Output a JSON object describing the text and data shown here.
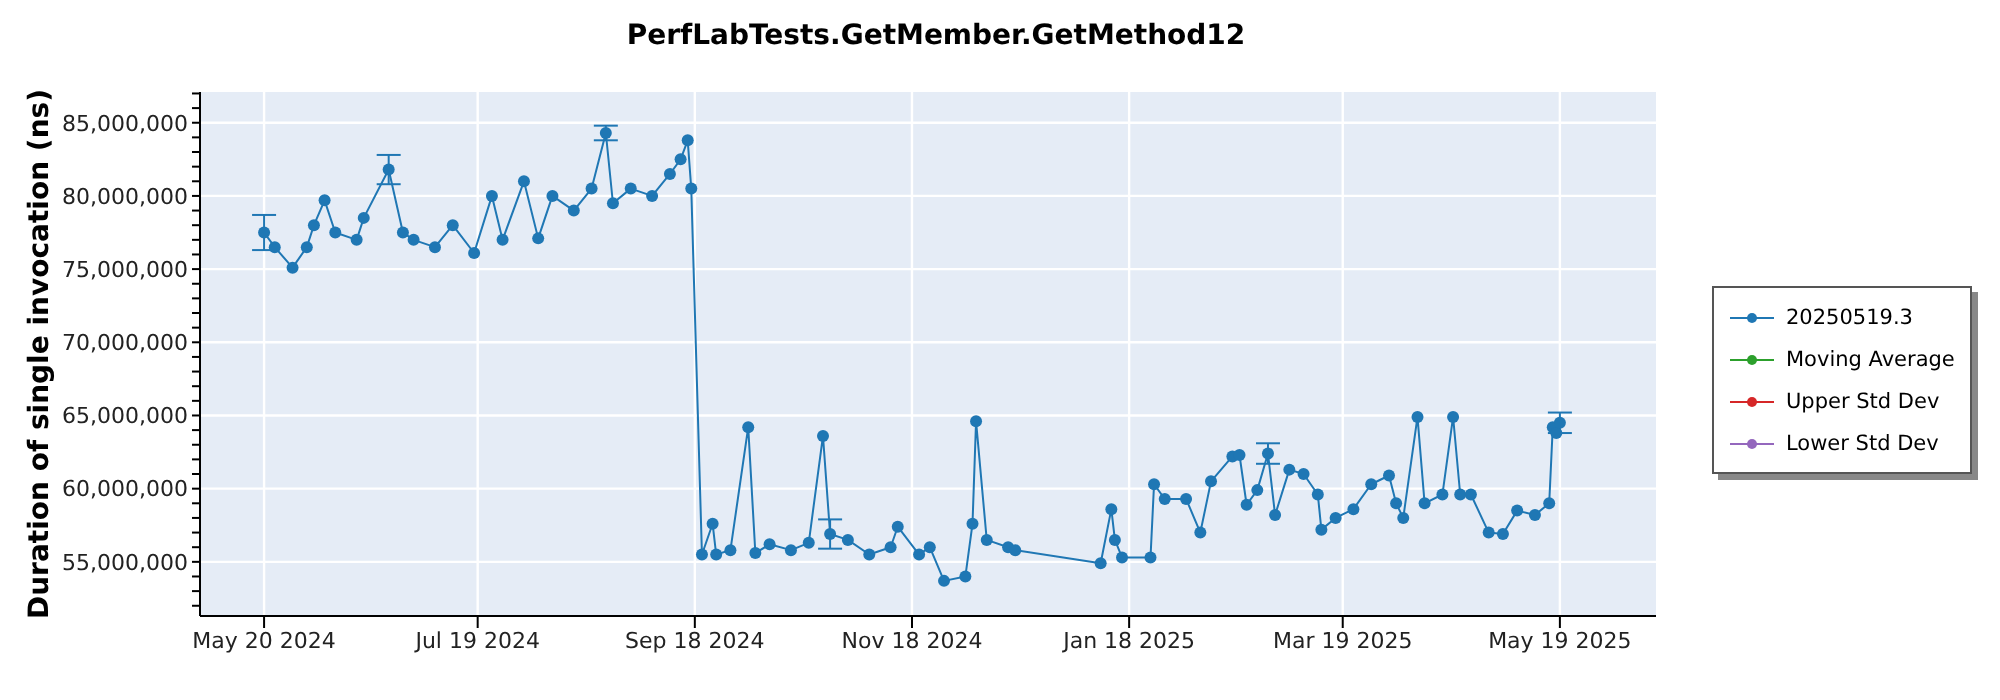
{
  "chart_data": {
    "type": "line",
    "title": "PerfLabTests.GetMember.GetMethod12",
    "ylabel": "Duration of single invocation (ns)",
    "x": [
      "2024-05-20",
      "2024-05-23",
      "2024-05-28",
      "2024-06-01",
      "2024-06-03",
      "2024-06-06",
      "2024-06-09",
      "2024-06-15",
      "2024-06-17",
      "2024-06-24",
      "2024-06-28",
      "2024-07-01",
      "2024-07-07",
      "2024-07-12",
      "2024-07-18",
      "2024-07-23",
      "2024-07-26",
      "2024-08-01",
      "2024-08-05",
      "2024-08-09",
      "2024-08-15",
      "2024-08-20",
      "2024-08-24",
      "2024-08-26",
      "2024-08-31",
      "2024-09-06",
      "2024-09-11",
      "2024-09-14",
      "2024-09-16",
      "2024-09-17",
      "2024-09-20",
      "2024-09-23",
      "2024-09-24",
      "2024-09-28",
      "2024-10-03",
      "2024-10-05",
      "2024-10-09",
      "2024-10-15",
      "2024-10-20",
      "2024-10-24",
      "2024-10-26",
      "2024-10-31",
      "2024-11-06",
      "2024-11-12",
      "2024-11-14",
      "2024-11-20",
      "2024-11-23",
      "2024-11-27",
      "2024-12-03",
      "2024-12-05",
      "2024-12-06",
      "2024-12-09",
      "2024-12-15",
      "2024-12-17",
      "2025-01-10",
      "2025-01-13",
      "2025-01-14",
      "2025-01-16",
      "2025-01-24",
      "2025-01-25",
      "2025-01-28",
      "2025-02-03",
      "2025-02-07",
      "2025-02-10",
      "2025-02-16",
      "2025-02-18",
      "2025-02-20",
      "2025-02-23",
      "2025-02-26",
      "2025-02-28",
      "2025-03-04",
      "2025-03-08",
      "2025-03-12",
      "2025-03-13",
      "2025-03-17",
      "2025-03-22",
      "2025-03-27",
      "2025-04-01",
      "2025-04-03",
      "2025-04-05",
      "2025-04-09",
      "2025-04-11",
      "2025-04-16",
      "2025-04-19",
      "2025-04-21",
      "2025-04-24",
      "2025-04-29",
      "2025-05-03",
      "2025-05-07",
      "2025-05-12",
      "2025-05-16",
      "2025-05-17",
      "2025-05-18",
      "2025-05-19"
    ],
    "series": [
      {
        "name": "20250519.3",
        "color": "#1f77b4",
        "values": [
          77500000,
          76500000,
          75100000,
          76500000,
          78000000,
          79700000,
          77500000,
          77000000,
          78500000,
          81800000,
          77500000,
          77000000,
          76500000,
          78000000,
          76100000,
          80000000,
          77000000,
          81000000,
          77100000,
          80000000,
          79000000,
          80500000,
          84300000,
          79500000,
          80500000,
          80000000,
          81500000,
          82500000,
          83800000,
          80500000,
          55500000,
          57600000,
          55500000,
          55800000,
          64200000,
          55600000,
          56200000,
          55800000,
          56300000,
          63600000,
          56900000,
          56500000,
          55500000,
          56000000,
          57400000,
          55500000,
          56000000,
          53700000,
          54000000,
          57600000,
          64600000,
          56500000,
          56000000,
          55800000,
          54900000,
          58600000,
          56500000,
          55300000,
          55300000,
          60300000,
          59300000,
          59300000,
          57000000,
          60500000,
          62200000,
          62300000,
          58900000,
          59900000,
          62400000,
          58200000,
          61300000,
          61000000,
          59600000,
          57200000,
          58000000,
          58600000,
          60300000,
          60900000,
          59000000,
          58000000,
          64900000,
          59000000,
          59600000,
          64900000,
          59600000,
          59600000,
          57000000,
          56900000,
          58500000,
          58200000,
          59000000,
          64200000,
          63800000,
          64500000
        ],
        "errors": [
          1200000,
          null,
          null,
          null,
          null,
          null,
          null,
          null,
          null,
          1000000,
          null,
          null,
          null,
          null,
          null,
          null,
          null,
          null,
          null,
          null,
          null,
          null,
          500000,
          null,
          null,
          null,
          null,
          null,
          null,
          null,
          null,
          null,
          null,
          null,
          null,
          null,
          null,
          null,
          null,
          null,
          1000000,
          null,
          null,
          null,
          null,
          null,
          null,
          null,
          null,
          null,
          null,
          null,
          null,
          null,
          null,
          null,
          null,
          null,
          null,
          null,
          null,
          null,
          null,
          null,
          null,
          null,
          null,
          null,
          700000,
          null,
          null,
          null,
          null,
          null,
          null,
          null,
          null,
          null,
          null,
          null,
          null,
          null,
          null,
          null,
          null,
          null,
          null,
          null,
          null,
          null,
          null,
          null,
          null,
          700000
        ]
      },
      {
        "name": "Moving Average",
        "color": "#2ca02c",
        "values": [
          null,
          null,
          null,
          null,
          null,
          null,
          null,
          null,
          null,
          null,
          null,
          null,
          null,
          null,
          null,
          null,
          null,
          null,
          null,
          null,
          null,
          null,
          null,
          null,
          null,
          null,
          null,
          null,
          null,
          null,
          null,
          null,
          null,
          null,
          null,
          null,
          null,
          null,
          null,
          null,
          null,
          null,
          null,
          null,
          null,
          null,
          null,
          null,
          null,
          null,
          null,
          null,
          null,
          null,
          null,
          null,
          null,
          null,
          null,
          null,
          null,
          null,
          null,
          null,
          null,
          null,
          null,
          null,
          null,
          null,
          null,
          null,
          null,
          null,
          null,
          null,
          null,
          null,
          null,
          null,
          null,
          null,
          null,
          null,
          null,
          null,
          null,
          null,
          null,
          null,
          null,
          null,
          null,
          null
        ]
      },
      {
        "name": "Upper Std Dev",
        "color": "#d62728",
        "values": [
          null,
          null,
          null,
          null,
          null,
          null,
          null,
          null,
          null,
          null,
          null,
          null,
          null,
          null,
          null,
          null,
          null,
          null,
          null,
          null,
          null,
          null,
          null,
          null,
          null,
          null,
          null,
          null,
          null,
          null,
          null,
          null,
          null,
          null,
          null,
          null,
          null,
          null,
          null,
          null,
          null,
          null,
          null,
          null,
          null,
          null,
          null,
          null,
          null,
          null,
          null,
          null,
          null,
          null,
          null,
          null,
          null,
          null,
          null,
          null,
          null,
          null,
          null,
          null,
          null,
          null,
          null,
          null,
          null,
          null,
          null,
          null,
          null,
          null,
          null,
          null,
          null,
          null,
          null,
          null,
          null,
          null,
          null,
          null,
          null,
          null,
          null,
          null,
          null,
          null,
          null,
          null,
          null,
          null
        ]
      },
      {
        "name": "Lower Std Dev",
        "color": "#9467bd",
        "values": [
          null,
          null,
          null,
          null,
          null,
          null,
          null,
          null,
          null,
          null,
          null,
          null,
          null,
          null,
          null,
          null,
          null,
          null,
          null,
          null,
          null,
          null,
          null,
          null,
          null,
          null,
          null,
          null,
          null,
          null,
          null,
          null,
          null,
          null,
          null,
          null,
          null,
          null,
          null,
          null,
          null,
          null,
          null,
          null,
          null,
          null,
          null,
          null,
          null,
          null,
          null,
          null,
          null,
          null,
          null,
          null,
          null,
          null,
          null,
          null,
          null,
          null,
          null,
          null,
          null,
          null,
          null,
          null,
          null,
          null,
          null,
          null,
          null,
          null,
          null,
          null,
          null,
          null,
          null,
          null,
          null,
          null,
          null,
          null,
          null,
          null,
          null,
          null,
          null,
          null,
          null,
          null,
          null,
          null
        ]
      }
    ],
    "xlim": [
      "2024-05-02",
      "2025-06-15"
    ],
    "xticks": [
      {
        "value": "2024-05-20",
        "label": "May 20 2024"
      },
      {
        "value": "2024-07-19",
        "label": "Jul 19 2024"
      },
      {
        "value": "2024-09-18",
        "label": "Sep 18 2024"
      },
      {
        "value": "2024-11-18",
        "label": "Nov 18 2024"
      },
      {
        "value": "2025-01-18",
        "label": "Jan 18 2025"
      },
      {
        "value": "2025-03-19",
        "label": "Mar 19 2025"
      },
      {
        "value": "2025-05-19",
        "label": "May 19 2025"
      }
    ],
    "ylim": [
      51300000,
      87100000
    ],
    "yticks": [
      {
        "value": 52000000,
        "label": null
      },
      {
        "value": 53000000,
        "label": null
      },
      {
        "value": 54000000,
        "label": null
      },
      {
        "value": 55000000,
        "label": "55,000,000"
      },
      {
        "value": 56000000,
        "label": null
      },
      {
        "value": 57000000,
        "label": null
      },
      {
        "value": 58000000,
        "label": null
      },
      {
        "value": 59000000,
        "label": null
      },
      {
        "value": 60000000,
        "label": "60,000,000"
      },
      {
        "value": 61000000,
        "label": null
      },
      {
        "value": 62000000,
        "label": null
      },
      {
        "value": 63000000,
        "label": null
      },
      {
        "value": 64000000,
        "label": null
      },
      {
        "value": 65000000,
        "label": "65,000,000"
      },
      {
        "value": 66000000,
        "label": null
      },
      {
        "value": 67000000,
        "label": null
      },
      {
        "value": 68000000,
        "label": null
      },
      {
        "value": 69000000,
        "label": null
      },
      {
        "value": 70000000,
        "label": "70,000,000"
      },
      {
        "value": 71000000,
        "label": null
      },
      {
        "value": 72000000,
        "label": null
      },
      {
        "value": 73000000,
        "label": null
      },
      {
        "value": 74000000,
        "label": null
      },
      {
        "value": 75000000,
        "label": "75,000,000"
      },
      {
        "value": 76000000,
        "label": null
      },
      {
        "value": 77000000,
        "label": null
      },
      {
        "value": 78000000,
        "label": null
      },
      {
        "value": 79000000,
        "label": null
      },
      {
        "value": 80000000,
        "label": "80,000,000"
      },
      {
        "value": 81000000,
        "label": null
      },
      {
        "value": 82000000,
        "label": null
      },
      {
        "value": 83000000,
        "label": null
      },
      {
        "value": 84000000,
        "label": null
      },
      {
        "value": 85000000,
        "label": "85,000,000"
      },
      {
        "value": 86000000,
        "label": null
      },
      {
        "value": 87000000,
        "label": null
      }
    ],
    "grid": true,
    "legend": "right",
    "marker": "circle",
    "line_style": "solid"
  }
}
